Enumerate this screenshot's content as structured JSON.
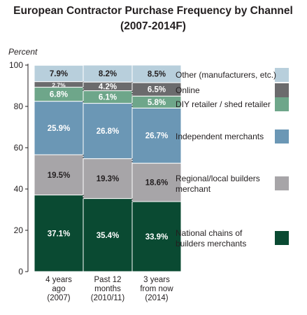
{
  "chart_data": {
    "type": "bar",
    "stacked": true,
    "title": "European Contractor Purchase Frequency by Channel",
    "subtitle": "(2007-2014F)",
    "ylabel": "Percent",
    "ylim": [
      0,
      100
    ],
    "yticks": [
      "0",
      "20",
      "40",
      "60",
      "80",
      "100"
    ],
    "categories": [
      [
        "4 years",
        "ago",
        "(2007)"
      ],
      [
        "Past 12",
        "months",
        "(2010/11)"
      ],
      [
        "3 years",
        "from now",
        "(2014)"
      ]
    ],
    "series": [
      {
        "name": [
          "National chains of",
          "builders merchants"
        ],
        "color": "#0a4a32",
        "values": [
          37.1,
          35.4,
          33.9
        ],
        "labels": [
          "37.1%",
          "35.4%",
          "33.9%"
        ]
      },
      {
        "name": [
          "Regional/local builders",
          "merchant"
        ],
        "color": "#a7a5a8",
        "values": [
          19.5,
          19.3,
          18.6
        ],
        "labels": [
          "19.5%",
          "19.3%",
          "18.6%"
        ]
      },
      {
        "name": [
          "Independent merchants"
        ],
        "color": "#6b97b5",
        "values": [
          25.9,
          26.8,
          26.7
        ],
        "labels": [
          "25.9%",
          "26.8%",
          "26.7%"
        ]
      },
      {
        "name": [
          "DIY retailer / shed retailer"
        ],
        "color": "#6ea68a",
        "values": [
          6.8,
          6.1,
          5.8
        ],
        "labels": [
          "6.8%",
          "6.1%",
          "5.8%"
        ]
      },
      {
        "name": [
          "Online"
        ],
        "color": "#6b6b6d",
        "values": [
          2.7,
          4.2,
          6.5
        ],
        "labels": [
          "2.7%",
          "4.2%",
          "6.5%"
        ]
      },
      {
        "name": [
          "Other (manufacturers, etc.)"
        ],
        "color": "#b8cfdc",
        "values": [
          7.9,
          8.2,
          8.5
        ],
        "labels": [
          "7.9%",
          "8.2%",
          "8.5%"
        ]
      }
    ],
    "grid": false,
    "legend_position": "right"
  }
}
